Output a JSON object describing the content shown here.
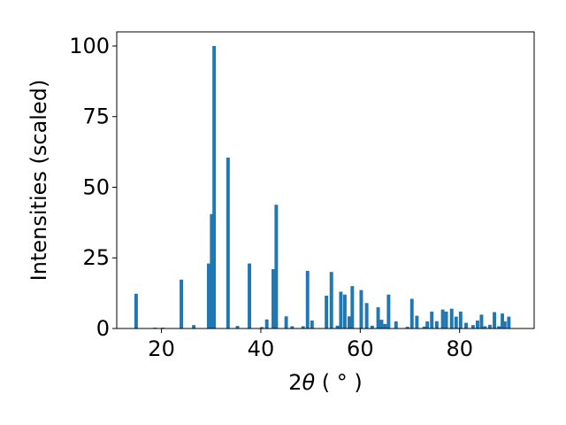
{
  "chart_data": {
    "type": "bar",
    "xlabel": "2θ ( ° )",
    "ylabel": "Intensities (scaled)",
    "xlim": [
      11,
      95
    ],
    "ylim": [
      0,
      105
    ],
    "xticks": [
      20,
      40,
      60,
      80
    ],
    "yticks": [
      0,
      25,
      50,
      75,
      100
    ],
    "x_tick_labels": [
      "20",
      "40",
      "60",
      "80"
    ],
    "y_tick_labels": [
      "0",
      "25",
      "50",
      "75",
      "100"
    ],
    "bar_width": 0.7,
    "bar_color": "#1f77b4",
    "grid": false,
    "x": [
      14.9,
      18.7,
      20.3,
      24.0,
      26.5,
      29.5,
      30.1,
      30.6,
      33.4,
      35.3,
      37.7,
      40.2,
      41.2,
      42.5,
      43.1,
      45.1,
      46.3,
      48.5,
      49.4,
      50.3,
      53.2,
      54.2,
      55.4,
      56.1,
      56.9,
      57.8,
      58.4,
      60.2,
      61.3,
      62.4,
      63.6,
      64.3,
      65.0,
      65.7,
      67.2,
      69.5,
      70.4,
      71.4,
      72.9,
      73.5,
      74.4,
      75.4,
      76.6,
      77.3,
      78.4,
      79.3,
      80.2,
      81.3,
      82.7,
      83.6,
      84.4,
      85.1,
      86.1,
      87.0,
      87.9,
      88.6,
      89.1,
      89.9
    ],
    "values": [
      12.3,
      0.3,
      0.3,
      17.3,
      1.2,
      23.0,
      40.5,
      100.0,
      60.5,
      0.9,
      23.0,
      0.5,
      3.2,
      21.0,
      43.8,
      4.3,
      0.8,
      0.8,
      20.4,
      2.8,
      11.6,
      20.0,
      1.0,
      13.0,
      12.0,
      4.3,
      15.0,
      13.6,
      9.0,
      1.0,
      7.5,
      3.1,
      1.6,
      12.0,
      2.5,
      0.6,
      10.5,
      4.5,
      0.7,
      2.5,
      6.0,
      2.6,
      6.7,
      6.0,
      7.0,
      4.2,
      6.0,
      2.0,
      1.2,
      2.8,
      4.9,
      0.8,
      1.3,
      5.8,
      0.8,
      5.3,
      2.5,
      4.2
    ]
  }
}
